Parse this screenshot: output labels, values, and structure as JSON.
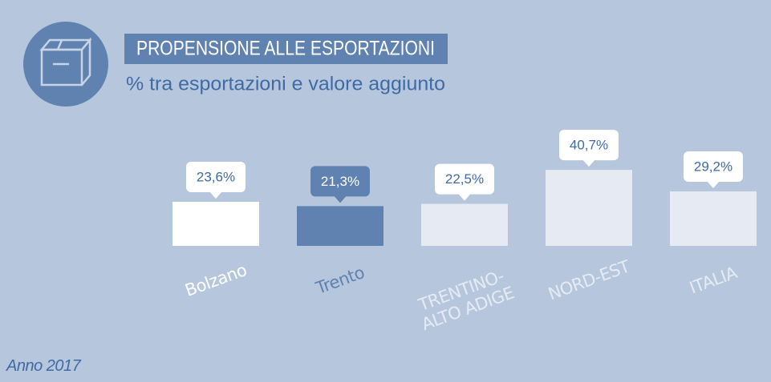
{
  "chart_data": {
    "type": "bar",
    "title": "PROPENSIONE ALLE ESPORTAZIONI",
    "subtitle": "% tra esportazioni e valore aggiunto",
    "note": "Anno 2017",
    "categories": [
      "Bolzano",
      "Trento",
      "TRENTINO-\nALTO ADIGE",
      "NORD-EST",
      "ITALIA"
    ],
    "values": [
      23.6,
      21.3,
      22.5,
      40.7,
      29.2
    ],
    "value_labels": [
      "23,6%",
      "21,3%",
      "22,5%",
      "40,7%",
      "29,2%"
    ],
    "colors": [
      "#ffffff",
      "#5f82b0",
      "#e6ebf3",
      "#e6ebf3",
      "#e6ebf3"
    ]
  }
}
